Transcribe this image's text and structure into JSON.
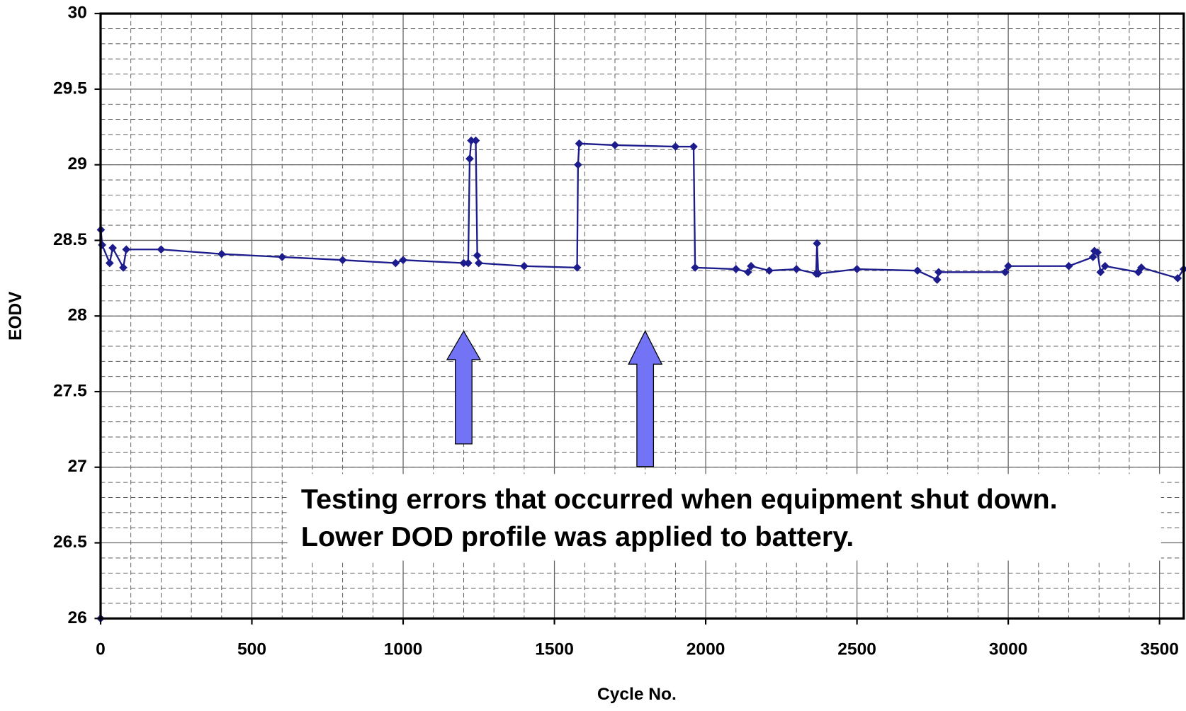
{
  "chart_data": {
    "type": "line",
    "x_label": "Cycle No.",
    "y_label": "EODV",
    "xlim": [
      0,
      3580
    ],
    "ylim": [
      26,
      30
    ],
    "xticks": [
      0,
      500,
      1000,
      1500,
      2000,
      2500,
      3000,
      3500
    ],
    "yticks": [
      26,
      26.5,
      27,
      27.5,
      28,
      28.5,
      29,
      29.5,
      30
    ],
    "grid": true,
    "minor_grid": {
      "x": 100,
      "y": 0.1
    },
    "series": [
      {
        "name": "EODV",
        "color": "#1c1c8c",
        "x": [
          0,
          1,
          5,
          30,
          40,
          75,
          85,
          200,
          400,
          600,
          800,
          975,
          1000,
          1200,
          1215,
          1220,
          1225,
          1240,
          1245,
          1250,
          1400,
          1575,
          1578,
          1582,
          1700,
          1900,
          1960,
          1965,
          2100,
          2140,
          2150,
          2210,
          2300,
          2365,
          2368,
          2372,
          2500,
          2700,
          2765,
          2770,
          2990,
          3000,
          3200,
          3280,
          3285,
          3295,
          3305,
          3320,
          3430,
          3440,
          3560,
          3580
        ],
        "values": [
          26.0,
          28.57,
          28.47,
          28.35,
          28.45,
          28.32,
          28.44,
          28.44,
          28.41,
          28.39,
          28.37,
          28.35,
          28.37,
          28.35,
          28.35,
          29.04,
          29.16,
          29.16,
          28.4,
          28.35,
          28.33,
          28.32,
          29.0,
          29.14,
          29.13,
          29.12,
          29.12,
          28.32,
          28.31,
          28.29,
          28.33,
          28.3,
          28.31,
          28.28,
          28.48,
          28.28,
          28.31,
          28.3,
          28.24,
          28.29,
          28.29,
          28.33,
          28.33,
          28.39,
          28.43,
          28.42,
          28.29,
          28.33,
          28.29,
          28.32,
          28.25,
          28.31
        ]
      }
    ],
    "annotations": [
      "Testing errors that occurred when equipment shut down.",
      "Lower DOD profile was applied to battery."
    ]
  }
}
